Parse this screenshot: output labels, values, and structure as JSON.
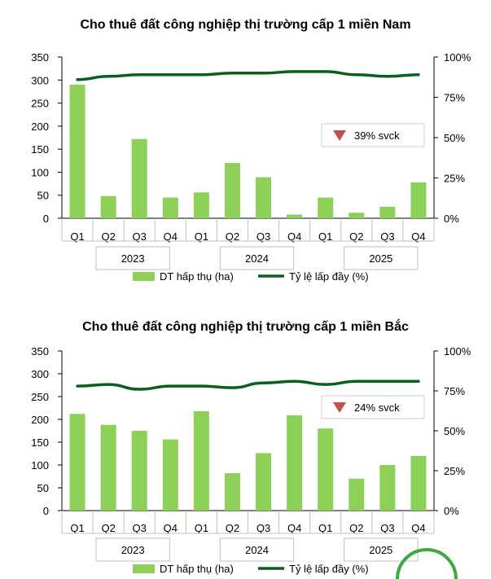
{
  "chart_data": [
    {
      "type": "bar",
      "title": "Cho thuê đất công nghiệp thị trường cấp 1 miền Nam",
      "categories": [
        "Q1",
        "Q2",
        "Q3",
        "Q4",
        "Q1",
        "Q2",
        "Q3",
        "Q4",
        "Q1",
        "Q2",
        "Q3",
        "Q4"
      ],
      "years": [
        "2023",
        "2024",
        "2025"
      ],
      "series": [
        {
          "name": "DT hấp thụ (ha)",
          "type": "bar",
          "axis": "left",
          "color": "#8CD057",
          "values": [
            290,
            48,
            172,
            45,
            56,
            120,
            89,
            8,
            45,
            12,
            25,
            78
          ]
        },
        {
          "name": "Tỷ lệ lấp đầy (%)",
          "type": "line",
          "axis": "right",
          "color": "#0B5E1F",
          "values": [
            86,
            88,
            89,
            89,
            89,
            90,
            90,
            91,
            91,
            89,
            88,
            89
          ]
        }
      ],
      "left_ticks": [
        "350",
        "300",
        "250",
        "200",
        "150",
        "100",
        "50",
        "0"
      ],
      "right_ticks": [
        "100%",
        "75%",
        "50%",
        "25%",
        "0%"
      ],
      "ylim": [
        0,
        350
      ],
      "y2lim": [
        0,
        100
      ],
      "annotation": "39% svck"
    },
    {
      "type": "bar",
      "title": "Cho thuê đất công nghiệp thị trường cấp 1 miền Bắc",
      "categories": [
        "Q1",
        "Q2",
        "Q3",
        "Q4",
        "Q1",
        "Q2",
        "Q3",
        "Q4",
        "Q1",
        "Q2",
        "Q3",
        "Q4"
      ],
      "years": [
        "2023",
        "2024",
        "2025"
      ],
      "series": [
        {
          "name": "DT hấp thụ (ha)",
          "type": "bar",
          "axis": "left",
          "color": "#8CD057",
          "values": [
            212,
            188,
            175,
            156,
            218,
            82,
            126,
            209,
            180,
            70,
            100,
            120
          ]
        },
        {
          "name": "Tỷ lệ lấp đầy (%)",
          "type": "line",
          "axis": "right",
          "color": "#0B5E1F",
          "values": [
            78,
            79,
            76,
            78,
            78,
            77,
            80,
            81,
            79,
            81,
            81,
            81
          ]
        }
      ],
      "left_ticks": [
        "350",
        "300",
        "250",
        "200",
        "150",
        "100",
        "50",
        "0"
      ],
      "right_ticks": [
        "100%",
        "75%",
        "50%",
        "25%",
        "0%"
      ],
      "ylim": [
        0,
        350
      ],
      "y2lim": [
        0,
        100
      ],
      "annotation": "24% svck"
    }
  ],
  "legend": {
    "bar_label": "DT hấp thụ (ha)",
    "line_label": "Tỷ lệ lấp đầy (%)"
  }
}
